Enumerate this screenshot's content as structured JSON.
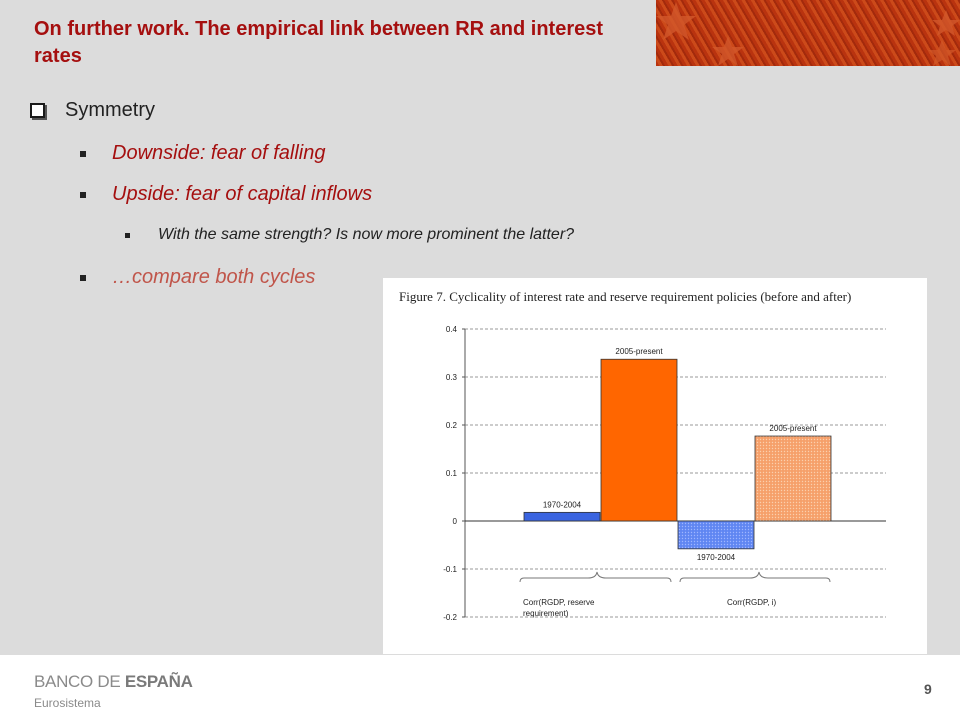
{
  "title": "On further work. The empirical link between RR and interest rates",
  "bullets": {
    "level1": "Symmetry",
    "item1": "Downside: fear of falling",
    "item2": "Upside: fear of capital inflows",
    "sub1": "With the same strength? Is now more prominent the latter?",
    "item3": "…compare both cycles"
  },
  "figure": {
    "caption": "Figure 7. Cyclicality of interest rate and reserve requirement policies (before and after)",
    "group1_label": [
      "Corr(RGDP, reserve",
      "requirement)"
    ],
    "group2_label": "Corr(RGDP, i)"
  },
  "chart_data": {
    "type": "bar",
    "ylim": [
      -0.2,
      0.4
    ],
    "yticks": [
      "0.4",
      "0.3",
      "0.2",
      "0.1",
      "0",
      "-0.1",
      "-0.2"
    ],
    "grid": true,
    "bars": [
      {
        "label": "1970-2004",
        "value": 0.018,
        "color": "#3a64e0"
      },
      {
        "label": "2005-present",
        "value": 0.337,
        "color": "#ff6600"
      },
      {
        "label": "1970-2004",
        "value": -0.058,
        "color": "#6a8cf0"
      },
      {
        "label": "2005-present",
        "value": 0.177,
        "color": "#f7a468"
      }
    ]
  },
  "footer": {
    "logo_a": "BANCO DE ",
    "logo_b": "ESPAÑA",
    "logo_sub": "Eurosistema",
    "page": "9"
  },
  "colors": {
    "title": "#a50f0f",
    "accent_light": "#c0554a"
  }
}
